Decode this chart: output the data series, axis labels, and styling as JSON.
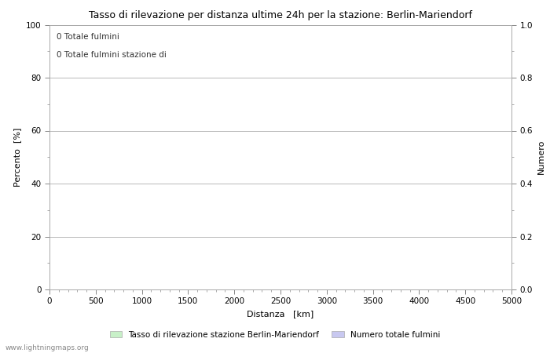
{
  "title": "Tasso di rilevazione per distanza ultime 24h per la stazione: Berlin-Mariendorf",
  "xlabel": "Distanza   [km]",
  "ylabel_left": "Percento  [%]",
  "ylabel_right": "Numero",
  "xlim": [
    0,
    5000
  ],
  "ylim_left": [
    0,
    100
  ],
  "ylim_right": [
    0.0,
    1.0
  ],
  "xticks": [
    0,
    500,
    1000,
    1500,
    2000,
    2500,
    3000,
    3500,
    4000,
    4500,
    5000
  ],
  "yticks_left": [
    0,
    20,
    40,
    60,
    80,
    100
  ],
  "yticks_right": [
    0.0,
    0.2,
    0.4,
    0.6,
    0.8,
    1.0
  ],
  "ytick_labels_left": [
    "0",
    "20",
    "40",
    "60",
    "80",
    "100"
  ],
  "ytick_labels_right": [
    "0.0",
    "0.2",
    "0.4",
    "0.6",
    "0.8",
    "1.0"
  ],
  "annotation1": "0 Totale fulmini",
  "annotation2": "0 Totale fulmini stazione di",
  "legend_label1": "Tasso di rilevazione stazione Berlin-Mariendorf",
  "legend_label2": "Numero totale fulmini",
  "legend_color1": "#c8f0c8",
  "legend_color2": "#c8c8f0",
  "grid_color": "#b8b8b8",
  "background_color": "#ffffff",
  "watermark": "www.lightningmaps.org",
  "title_fontsize": 9,
  "axis_label_fontsize": 8,
  "tick_fontsize": 7.5,
  "annotation_fontsize": 7.5,
  "legend_fontsize": 7.5,
  "watermark_fontsize": 6.5
}
